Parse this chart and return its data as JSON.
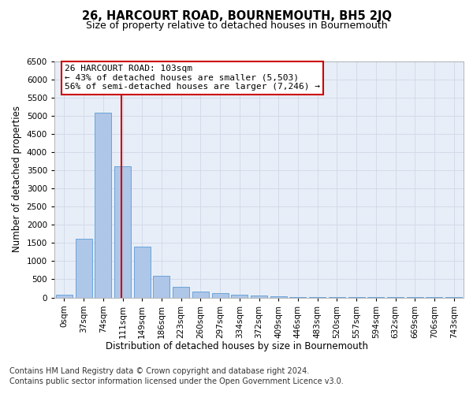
{
  "title": "26, HARCOURT ROAD, BOURNEMOUTH, BH5 2JQ",
  "subtitle": "Size of property relative to detached houses in Bournemouth",
  "xlabel": "Distribution of detached houses by size in Bournemouth",
  "ylabel": "Number of detached properties",
  "footer_line1": "Contains HM Land Registry data © Crown copyright and database right 2024.",
  "footer_line2": "Contains public sector information licensed under the Open Government Licence v3.0.",
  "bar_labels": [
    "0sqm",
    "37sqm",
    "74sqm",
    "111sqm",
    "149sqm",
    "186sqm",
    "223sqm",
    "260sqm",
    "297sqm",
    "334sqm",
    "372sqm",
    "409sqm",
    "446sqm",
    "483sqm",
    "520sqm",
    "557sqm",
    "594sqm",
    "632sqm",
    "669sqm",
    "706sqm",
    "743sqm"
  ],
  "bar_values": [
    75,
    1620,
    5080,
    3600,
    1400,
    590,
    295,
    160,
    110,
    85,
    50,
    30,
    15,
    10,
    5,
    5,
    3,
    2,
    2,
    2,
    3
  ],
  "bar_color": "#aec6e8",
  "bar_edge_color": "#5b9bd5",
  "grid_color": "#d0d8e8",
  "vline_color": "#cc0000",
  "vline_x_index": 2.925,
  "annotation_text": "26 HARCOURT ROAD: 103sqm\n← 43% of detached houses are smaller (5,503)\n56% of semi-detached houses are larger (7,246) →",
  "annotation_box_color": "white",
  "annotation_box_edge_color": "#cc0000",
  "ylim": [
    0,
    6500
  ],
  "yticks": [
    0,
    500,
    1000,
    1500,
    2000,
    2500,
    3000,
    3500,
    4000,
    4500,
    5000,
    5500,
    6000,
    6500
  ],
  "bg_color": "#e8eef7",
  "fig_bg_color": "#ffffff",
  "title_fontsize": 10.5,
  "subtitle_fontsize": 9,
  "axis_label_fontsize": 8.5,
  "tick_fontsize": 7.5,
  "annotation_fontsize": 8,
  "footer_fontsize": 7
}
